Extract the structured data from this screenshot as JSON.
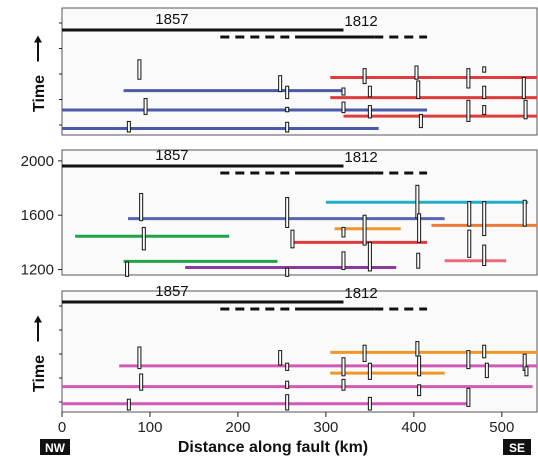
{
  "chart_data": {
    "type": "timeline",
    "xlabel": "Distance along fault (km)",
    "xlim": [
      0,
      540
    ],
    "x_ticks": [
      0,
      100,
      200,
      300,
      400,
      500
    ],
    "direction_labels": {
      "left": "NW",
      "right": "SE"
    },
    "historical_events": [
      {
        "label": "1857",
        "solid": [
          0,
          320
        ],
        "dashed": [
          180,
          320
        ]
      },
      {
        "label": "1812",
        "solid": [
          265,
          355
        ],
        "dashed": [
          355,
          415
        ]
      }
    ],
    "panels": [
      {
        "ylabel": "Time",
        "arrow": true,
        "yticks": [],
        "ylim": [
          0,
          1
        ],
        "ruptures": [
          {
            "x": [
              70,
              320
            ],
            "y": 0.47,
            "color": "#4a5aa8"
          },
          {
            "x": [
              0,
              415
            ],
            "y": 0.25,
            "color": "#4a5aa8"
          },
          {
            "x": [
              0,
              360
            ],
            "y": 0.04,
            "color": "#4a5aa8"
          },
          {
            "x": [
              305,
              540
            ],
            "y": 0.62,
            "color": "#e03c3c"
          },
          {
            "x": [
              305,
              540
            ],
            "y": 0.39,
            "color": "#e03c3c"
          },
          {
            "x": [
              320,
              540
            ],
            "y": 0.18,
            "color": "#e03c3c"
          }
        ],
        "sites": [
          {
            "x": 88,
            "y": [
              0.6,
              0.82
            ]
          },
          {
            "x": 95,
            "y": [
              0.2,
              0.38
            ]
          },
          {
            "x": 76,
            "y": [
              0.0,
              0.12
            ]
          },
          {
            "x": 248,
            "y": [
              0.46,
              0.64
            ]
          },
          {
            "x": 256,
            "y": [
              0.38,
              0.52
            ]
          },
          {
            "x": 256,
            "y": [
              0.23,
              0.28
            ]
          },
          {
            "x": 256,
            "y": [
              0.0,
              0.11
            ]
          },
          {
            "x": 320,
            "y": [
              0.42,
              0.5
            ]
          },
          {
            "x": 320,
            "y": [
              0.22,
              0.34
            ]
          },
          {
            "x": 344,
            "y": [
              0.55,
              0.72
            ]
          },
          {
            "x": 350,
            "y": [
              0.4,
              0.52
            ]
          },
          {
            "x": 350,
            "y": [
              0.16,
              0.3
            ]
          },
          {
            "x": 403,
            "y": [
              0.6,
              0.75
            ]
          },
          {
            "x": 405,
            "y": [
              0.38,
              0.58
            ]
          },
          {
            "x": 408,
            "y": [
              0.05,
              0.2
            ]
          },
          {
            "x": 462,
            "y": [
              0.5,
              0.72
            ]
          },
          {
            "x": 462,
            "y": [
              0.12,
              0.36
            ]
          },
          {
            "x": 480,
            "y": [
              0.68,
              0.74
            ]
          },
          {
            "x": 480,
            "y": [
              0.38,
              0.52
            ]
          },
          {
            "x": 480,
            "y": [
              0.2,
              0.3
            ]
          },
          {
            "x": 525,
            "y": [
              0.38,
              0.62
            ]
          },
          {
            "x": 527,
            "y": [
              0.15,
              0.36
            ]
          }
        ]
      },
      {
        "ylabel": "",
        "arrow": false,
        "yticks": [
          1200,
          1600,
          2000
        ],
        "ylim": [
          1160,
          2080
        ],
        "ruptures": [
          {
            "x": [
              300,
              530
            ],
            "y": 1695,
            "color": "#1fb0c8"
          },
          {
            "x": [
              75,
              435
            ],
            "y": 1575,
            "color": "#5a64b0"
          },
          {
            "x": 310,
            "y": 1500,
            "x_end": 385,
            "color": "#f0962a"
          },
          {
            "x": [
              420,
              540
            ],
            "y": 1525,
            "color": "#ec7a3a"
          },
          {
            "x": [
              15,
              190
            ],
            "y": 1445,
            "color": "#20a44a"
          },
          {
            "x": [
              260,
              415
            ],
            "y": 1400,
            "color": "#e03c3c"
          },
          {
            "x": [
              70,
              245
            ],
            "y": 1260,
            "color": "#20a44a"
          },
          {
            "x": [
              140,
              380
            ],
            "y": 1215,
            "color": "#8a3a9a"
          },
          {
            "x": [
              435,
              505
            ],
            "y": 1265,
            "color": "#ec6a7a"
          }
        ],
        "sites": [
          {
            "x": 90,
            "y": [
              1560,
              1760
            ]
          },
          {
            "x": 93,
            "y": [
              1345,
              1510
            ]
          },
          {
            "x": 74,
            "y": [
              1150,
              1255
            ]
          },
          {
            "x": 256,
            "y": [
              1510,
              1730
            ]
          },
          {
            "x": 262,
            "y": [
              1360,
              1490
            ]
          },
          {
            "x": 256,
            "y": [
              1150,
              1210
            ]
          },
          {
            "x": 320,
            "y": [
              1440,
              1510
            ]
          },
          {
            "x": 320,
            "y": [
              1200,
              1330
            ]
          },
          {
            "x": 344,
            "y": [
              1380,
              1600
            ]
          },
          {
            "x": 350,
            "y": [
              1190,
              1400
            ]
          },
          {
            "x": 404,
            "y": [
              1580,
              1820
            ]
          },
          {
            "x": 406,
            "y": [
              1400,
              1610
            ]
          },
          {
            "x": 405,
            "y": [
              1210,
              1320
            ]
          },
          {
            "x": 463,
            "y": [
              1520,
              1700
            ]
          },
          {
            "x": 463,
            "y": [
              1290,
              1490
            ]
          },
          {
            "x": 480,
            "y": [
              1450,
              1700
            ]
          },
          {
            "x": 480,
            "y": [
              1230,
              1380
            ]
          },
          {
            "x": 526,
            "y": [
              1520,
              1710
            ]
          }
        ]
      },
      {
        "ylabel": "Time",
        "arrow": true,
        "yticks": [],
        "ylim": [
          0,
          1
        ],
        "ruptures": [
          {
            "x": [
              305,
              540
            ],
            "y": 0.64,
            "color": "#f0962a"
          },
          {
            "x": [
              65,
              540
            ],
            "y": 0.49,
            "color": "#d05ab4"
          },
          {
            "x": [
              305,
              435
            ],
            "y": 0.41,
            "color": "#f0962a"
          },
          {
            "x": [
              0,
              535
            ],
            "y": 0.26,
            "color": "#d05ab4"
          },
          {
            "x": [
              0,
              460
            ],
            "y": 0.07,
            "color": "#d05ab4"
          }
        ],
        "sites": [
          {
            "x": 88,
            "y": [
              0.46,
              0.7
            ]
          },
          {
            "x": 90,
            "y": [
              0.22,
              0.4
            ]
          },
          {
            "x": 76,
            "y": [
              0.0,
              0.12
            ]
          },
          {
            "x": 248,
            "y": [
              0.5,
              0.66
            ]
          },
          {
            "x": 256,
            "y": [
              0.44,
              0.52
            ]
          },
          {
            "x": 256,
            "y": [
              0.24,
              0.32
            ]
          },
          {
            "x": 256,
            "y": [
              0.0,
              0.17
            ]
          },
          {
            "x": 320,
            "y": [
              0.38,
              0.58
            ]
          },
          {
            "x": 320,
            "y": [
              0.22,
              0.34
            ]
          },
          {
            "x": 344,
            "y": [
              0.54,
              0.72
            ]
          },
          {
            "x": 350,
            "y": [
              0.34,
              0.52
            ]
          },
          {
            "x": 350,
            "y": [
              0.0,
              0.14
            ]
          },
          {
            "x": 404,
            "y": [
              0.6,
              0.76
            ]
          },
          {
            "x": 406,
            "y": [
              0.38,
              0.6
            ]
          },
          {
            "x": 406,
            "y": [
              0.16,
              0.28
            ]
          },
          {
            "x": 462,
            "y": [
              0.46,
              0.66
            ]
          },
          {
            "x": 462,
            "y": [
              0.04,
              0.24
            ]
          },
          {
            "x": 480,
            "y": [
              0.58,
              0.72
            ]
          },
          {
            "x": 483,
            "y": [
              0.36,
              0.52
            ]
          },
          {
            "x": 526,
            "y": [
              0.44,
              0.62
            ]
          },
          {
            "x": 528,
            "y": [
              0.38,
              0.48
            ]
          }
        ]
      }
    ]
  }
}
